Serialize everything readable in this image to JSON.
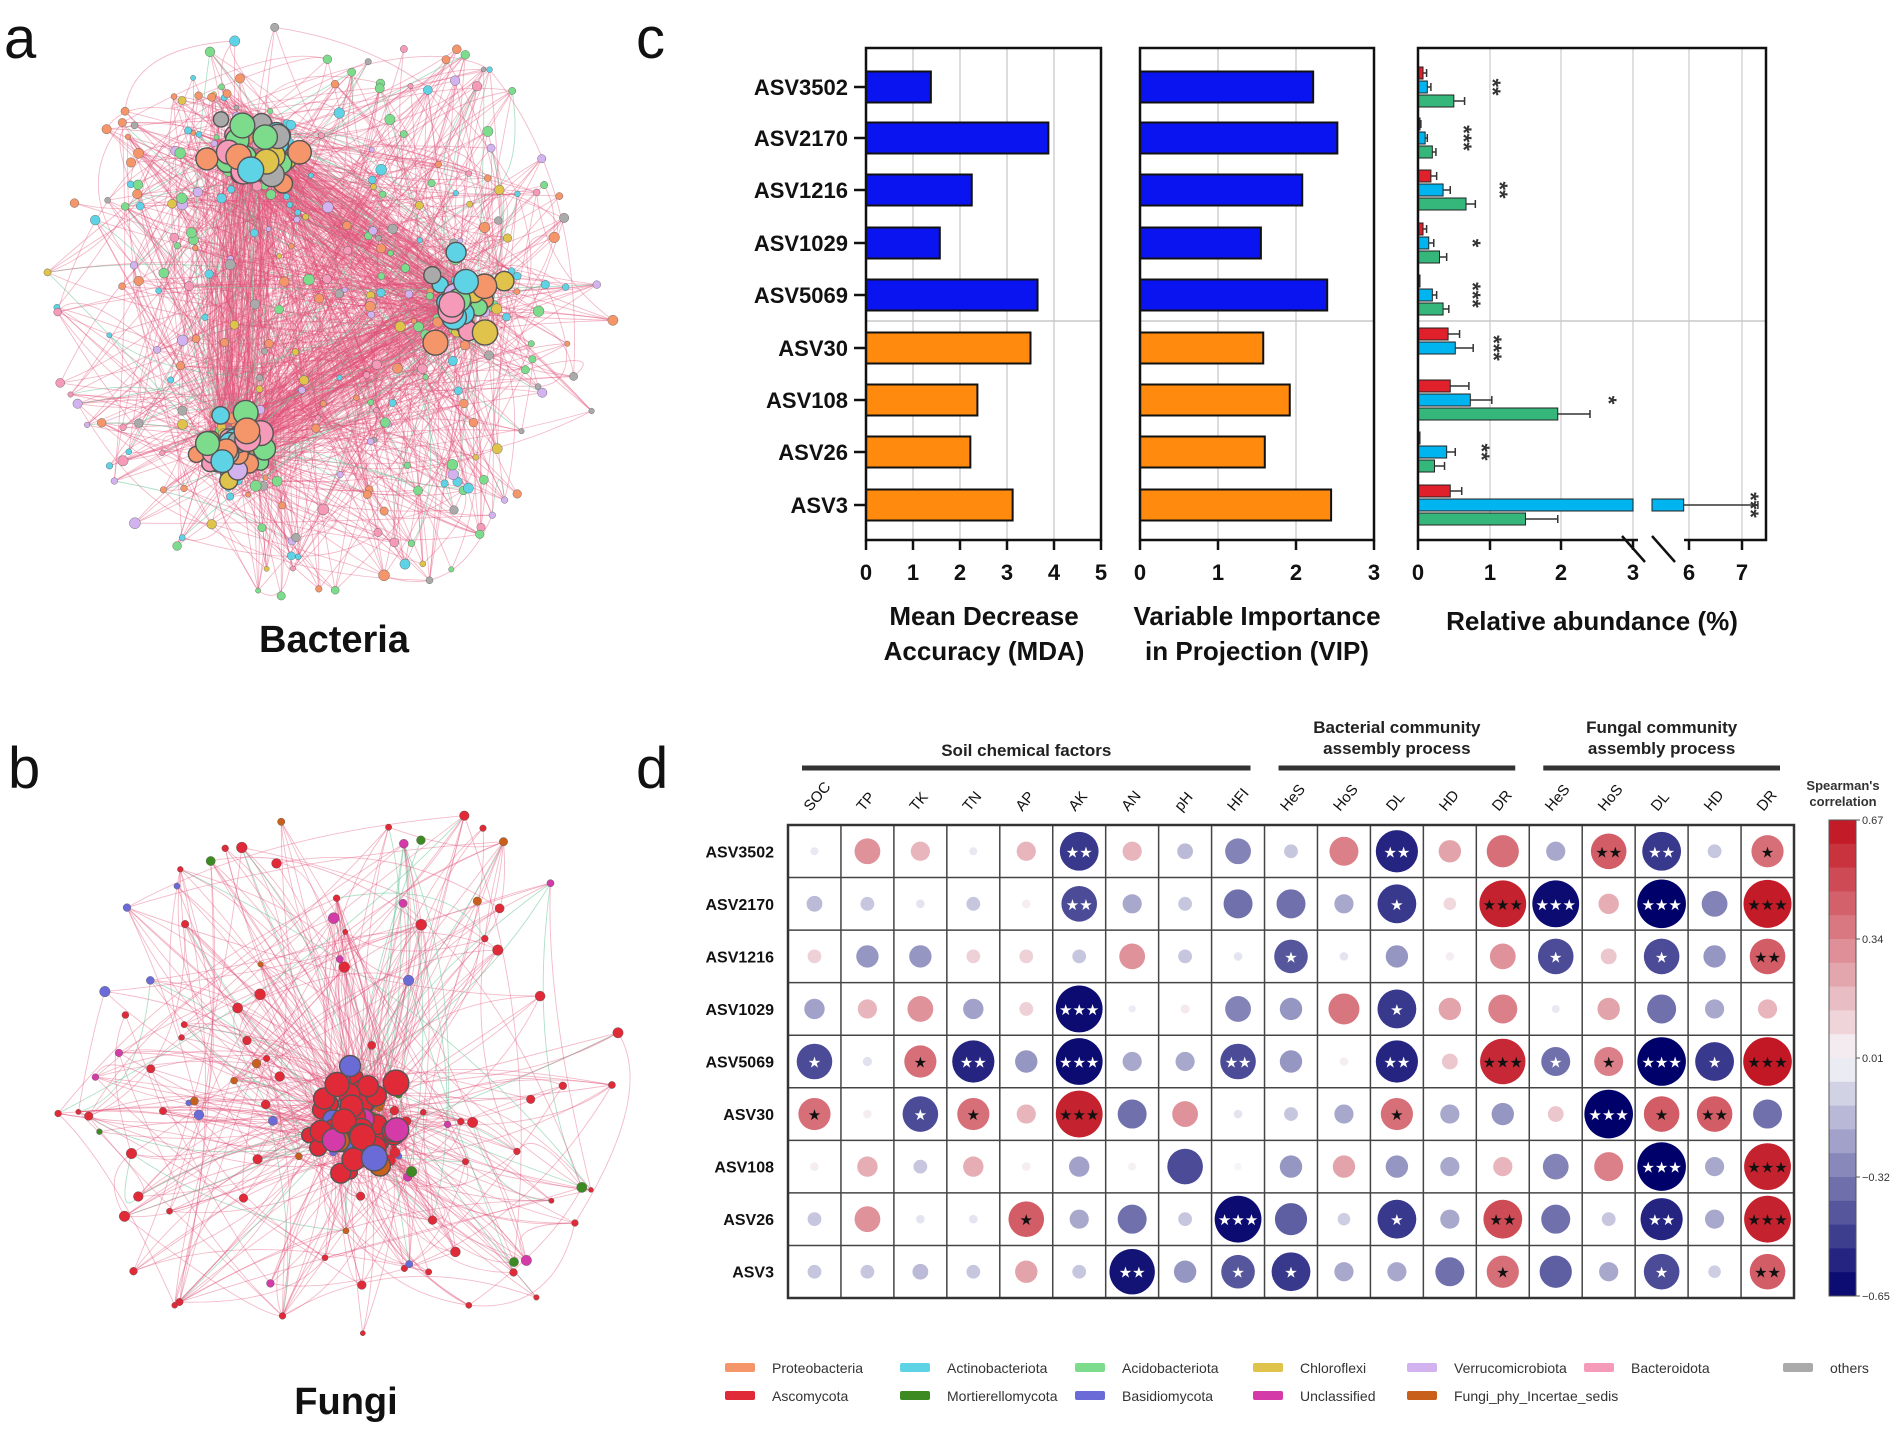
{
  "panels": {
    "a": "a",
    "b": "b",
    "c": "c",
    "d": "d"
  },
  "networks": {
    "bacteria_title": "Bacteria",
    "fungi_title": "Fungi"
  },
  "legend": [
    {
      "label": "Proteobacteria",
      "color": "#f4956a"
    },
    {
      "label": "Actinobacteriota",
      "color": "#5fd3e6"
    },
    {
      "label": "Acidobacteriota",
      "color": "#7ddc8c"
    },
    {
      "label": "Chloroflexi",
      "color": "#e0c34a"
    },
    {
      "label": "Verrucomicrobiota",
      "color": "#d2b3f0"
    },
    {
      "label": "Bacteroidota",
      "color": "#f59ab8"
    },
    {
      "label": "others",
      "color": "#aaaaaa"
    },
    {
      "label": "Ascomycota",
      "color": "#e02a38"
    },
    {
      "label": "Mortierellomycota",
      "color": "#3d8a22"
    },
    {
      "label": "Basidiomycota",
      "color": "#6b6bd8"
    },
    {
      "label": "Unclassified",
      "color": "#d43aa8"
    },
    {
      "label": "Fungi_phy_Incertae_sedis",
      "color": "#c8601c"
    }
  ],
  "chart_data": [
    {
      "type": "bar",
      "orientation": "horizontal",
      "categories": [
        "ASV3502",
        "ASV2170",
        "ASV1216",
        "ASV1029",
        "ASV5069",
        "ASV30",
        "ASV108",
        "ASV26",
        "ASV3"
      ],
      "values": [
        1.38,
        3.88,
        2.25,
        1.57,
        3.65,
        3.5,
        2.37,
        2.22,
        3.12
      ],
      "bar_colors": [
        "#0a14f0",
        "#0a14f0",
        "#0a14f0",
        "#0a14f0",
        "#0a14f0",
        "#ff8a0d",
        "#ff8a0d",
        "#ff8a0d",
        "#ff8a0d"
      ],
      "xlabel": [
        "Mean Decrease",
        "Accuracy (MDA)"
      ],
      "xlim": [
        0,
        5
      ],
      "xticks": [
        "0",
        "1",
        "2",
        "3",
        "4",
        "5"
      ]
    },
    {
      "type": "bar",
      "orientation": "horizontal",
      "categories": [
        "ASV3502",
        "ASV2170",
        "ASV1216",
        "ASV1029",
        "ASV5069",
        "ASV30",
        "ASV108",
        "ASV26",
        "ASV3"
      ],
      "values": [
        2.22,
        2.53,
        2.08,
        1.55,
        2.4,
        1.58,
        1.92,
        1.6,
        2.45
      ],
      "bar_colors": [
        "#0a14f0",
        "#0a14f0",
        "#0a14f0",
        "#0a14f0",
        "#0a14f0",
        "#ff8a0d",
        "#ff8a0d",
        "#ff8a0d",
        "#ff8a0d"
      ],
      "xlabel": [
        "Variable Importance",
        "in Projection (VIP)"
      ],
      "xlim": [
        0,
        3
      ],
      "xticks": [
        "0",
        "1",
        "2",
        "3"
      ]
    },
    {
      "type": "bar",
      "orientation": "horizontal",
      "grouped": true,
      "categories": [
        "ASV3502",
        "ASV2170",
        "ASV1216",
        "ASV1029",
        "ASV5069",
        "ASV30",
        "ASV108",
        "ASV26",
        "ASV3"
      ],
      "series": [
        {
          "color": "#e0202a",
          "values": [
            0.07,
            0.02,
            0.18,
            0.07,
            0.01,
            0.42,
            0.45,
            0.01,
            0.45
          ],
          "errors": [
            0.05,
            0.02,
            0.08,
            0.05,
            0.01,
            0.16,
            0.26,
            0.01,
            0.16
          ]
        },
        {
          "color": "#00b4f0",
          "values": [
            0.13,
            0.1,
            0.35,
            0.15,
            0.2,
            0.52,
            0.73,
            0.4,
            5.9
          ],
          "errors": [
            0.05,
            0.03,
            0.1,
            0.07,
            0.06,
            0.25,
            0.3,
            0.12,
            1.4
          ]
        },
        {
          "color": "#35b77c",
          "values": [
            0.5,
            0.2,
            0.67,
            0.3,
            0.35,
            0,
            1.95,
            0.23,
            1.5
          ],
          "errors": [
            0.15,
            0.05,
            0.13,
            0.1,
            0.08,
            0,
            0.45,
            0.14,
            0.45
          ]
        }
      ],
      "significance": [
        "**",
        "***",
        "**",
        "*",
        "***",
        "***",
        "*",
        "**",
        "***"
      ],
      "xlabel": "Relative abundance (%)",
      "xlim": [
        0,
        7.5
      ],
      "axis_break": [
        3,
        5.7
      ],
      "xticks": [
        "0",
        "1",
        "2",
        "3",
        "6",
        "7"
      ]
    },
    {
      "type": "heatmap",
      "title": "Spearman's correlation",
      "groups": [
        {
          "label": [
            "Soil chemical factors"
          ],
          "span": 9
        },
        {
          "label": [
            "Bacterial community",
            "assembly process"
          ],
          "span": 5
        },
        {
          "label": [
            "Fungal community",
            "assembly process"
          ],
          "span": 5
        }
      ],
      "columns": [
        "SOC",
        "TP",
        "TK",
        "TN",
        "AP",
        "AK",
        "AN",
        "pH",
        "HFI",
        "HeS",
        "HoS",
        "DL",
        "HD",
        "DR",
        "HeS",
        "HoS",
        "DL",
        "HD",
        "DR"
      ],
      "rows": [
        "ASV3502",
        "ASV2170",
        "ASV1216",
        "ASV1029",
        "ASV5069",
        "ASV30",
        "ASV108",
        "ASV26",
        "ASV3"
      ],
      "values": [
        [
          -0.03,
          0.3,
          0.2,
          -0.03,
          0.2,
          -0.5,
          0.2,
          -0.15,
          -0.3,
          -0.12,
          0.35,
          -0.55,
          0.25,
          0.4,
          -0.2,
          0.45,
          -0.5,
          -0.12,
          0.4
        ],
        [
          -0.15,
          -0.12,
          -0.04,
          -0.12,
          0.04,
          -0.45,
          -0.2,
          -0.12,
          -0.35,
          -0.35,
          -0.2,
          -0.5,
          0.1,
          0.62,
          -0.62,
          0.22,
          -0.65,
          -0.3,
          0.64
        ],
        [
          0.12,
          -0.25,
          -0.25,
          0.12,
          0.12,
          -0.12,
          0.3,
          -0.12,
          -0.04,
          -0.42,
          -0.04,
          -0.25,
          0.04,
          0.3,
          -0.45,
          0.15,
          -0.45,
          -0.25,
          0.45
        ],
        [
          -0.22,
          0.2,
          0.3,
          -0.22,
          0.12,
          -0.62,
          -0.02,
          0.05,
          -0.3,
          -0.25,
          0.38,
          -0.5,
          0.25,
          0.35,
          -0.03,
          0.25,
          -0.35,
          -0.2,
          0.2
        ],
        [
          -0.45,
          -0.05,
          0.4,
          -0.55,
          -0.25,
          -0.62,
          -0.2,
          -0.2,
          -0.45,
          -0.25,
          0.04,
          -0.55,
          0.15,
          0.6,
          -0.35,
          0.35,
          -0.65,
          -0.5,
          0.65
        ],
        [
          0.4,
          0.04,
          -0.45,
          0.4,
          0.2,
          0.62,
          -0.35,
          0.3,
          -0.04,
          -0.12,
          -0.2,
          0.4,
          -0.2,
          -0.25,
          0.15,
          -0.65,
          0.45,
          0.45,
          -0.35
        ],
        [
          0.04,
          0.22,
          -0.12,
          0.22,
          0.04,
          -0.22,
          0.03,
          -0.45,
          0.02,
          -0.25,
          0.25,
          -0.25,
          -0.2,
          0.2,
          -0.3,
          0.35,
          -0.65,
          -0.2,
          0.62
        ],
        [
          -0.12,
          0.3,
          -0.04,
          -0.04,
          0.45,
          -0.2,
          -0.35,
          -0.12,
          -0.62,
          -0.4,
          -0.1,
          -0.5,
          -0.2,
          0.5,
          -0.35,
          -0.12,
          -0.55,
          -0.2,
          0.62
        ],
        [
          -0.12,
          -0.12,
          -0.15,
          -0.12,
          0.25,
          -0.12,
          -0.6,
          -0.25,
          -0.42,
          -0.5,
          -0.2,
          -0.2,
          -0.35,
          0.4,
          -0.4,
          -0.2,
          -0.45,
          -0.1,
          0.45
        ]
      ],
      "significance": [
        [
          "",
          "",
          "",
          "",
          "",
          "**",
          "",
          "",
          "",
          "",
          "",
          "**",
          "",
          "",
          "",
          "**",
          "**",
          "",
          "*"
        ],
        [
          "",
          "",
          "",
          "",
          "",
          "**",
          "",
          "",
          "",
          "",
          "",
          "*",
          "",
          "***",
          "***",
          "",
          "***",
          "",
          "***"
        ],
        [
          "",
          "",
          "",
          "",
          "",
          "",
          "",
          "",
          "",
          "*",
          "",
          "",
          "",
          "",
          "*",
          "",
          "*",
          "",
          "**"
        ],
        [
          "",
          "",
          "",
          "",
          "",
          "***",
          "",
          "",
          "",
          "",
          "",
          "*",
          "",
          "",
          "",
          "",
          "",
          "",
          ""
        ],
        [
          "*",
          "",
          "*",
          "**",
          "",
          "***",
          "",
          "",
          "**",
          "",
          "",
          "**",
          "",
          "***",
          "*",
          "*",
          "***",
          "*",
          "***"
        ],
        [
          "*",
          "",
          "*",
          "*",
          "",
          "***",
          "",
          "",
          "",
          "",
          "",
          "*",
          "",
          "",
          "",
          "***",
          "*",
          "**",
          ""
        ],
        [
          "",
          "",
          "",
          "",
          "",
          "",
          "",
          "",
          "",
          "",
          "",
          "",
          "",
          "",
          "",
          "",
          "***",
          "",
          "***"
        ],
        [
          "",
          "",
          "",
          "",
          "*",
          "",
          "",
          "",
          "***",
          "",
          "",
          "*",
          "",
          "**",
          "",
          "",
          "**",
          "",
          "***"
        ],
        [
          "",
          "",
          "",
          "",
          "",
          "",
          "**",
          "",
          "*",
          "*",
          "",
          "",
          "",
          "*",
          "",
          "",
          "*",
          "",
          "**"
        ]
      ],
      "colorbar": {
        "min": -0.65,
        "max": 0.67,
        "ticks": [
          "0.67",
          "0.34",
          "0.01",
          "−0.32",
          "−0.65"
        ],
        "low_color": "#00006b",
        "mid_color": "#f7f7fb",
        "high_color": "#c0101d"
      }
    }
  ]
}
